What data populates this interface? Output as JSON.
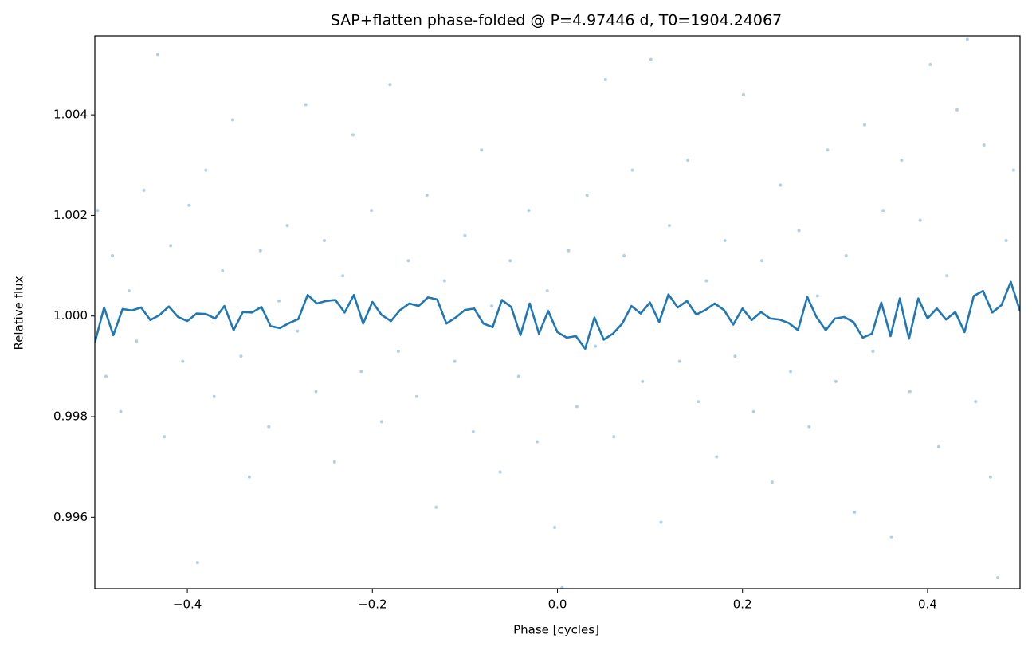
{
  "chart_data": {
    "type": "scatter",
    "title": "SAP+flatten phase-folded @ P=4.97446 d, T0=1904.24067",
    "x_label": "Phase [cycles]",
    "y_label": "Relative flux",
    "xlim": [
      -0.5,
      0.5
    ],
    "ylim": [
      0.99458,
      1.00557
    ],
    "xticks": [
      {
        "value": -0.4,
        "label": "−0.4"
      },
      {
        "value": -0.2,
        "label": "−0.2"
      },
      {
        "value": 0,
        "label": "0.0"
      },
      0.2,
      0.4
    ],
    "yticks": [
      0.996,
      0.998,
      {
        "value": 1,
        "label": "1.000"
      },
      1.002,
      1.004
    ],
    "series": [
      {
        "type": "scatter",
        "color": "#1f77b4",
        "x": [
          -0.497,
          -0.488,
          -0.481,
          -0.472,
          -0.463,
          -0.455,
          -0.447,
          -0.432,
          -0.425,
          -0.418,
          -0.405,
          -0.398,
          -0.389,
          -0.38,
          -0.371,
          -0.362,
          -0.351,
          -0.342,
          -0.333,
          -0.321,
          -0.312,
          -0.301,
          -0.292,
          -0.281,
          -0.272,
          -0.261,
          -0.252,
          -0.241,
          -0.232,
          -0.221,
          -0.212,
          -0.201,
          -0.19,
          -0.181,
          -0.172,
          -0.161,
          -0.152,
          -0.141,
          -0.131,
          -0.122,
          -0.111,
          -0.1,
          -0.091,
          -0.082,
          -0.071,
          -0.062,
          -0.051,
          -0.042,
          -0.031,
          -0.022,
          -0.011,
          -0.003,
          0.005,
          0.012,
          0.021,
          0.032,
          0.041,
          0.052,
          0.061,
          0.072,
          0.081,
          0.092,
          0.101,
          0.112,
          0.121,
          0.132,
          0.141,
          0.152,
          0.161,
          0.172,
          0.181,
          0.192,
          0.201,
          0.212,
          0.221,
          0.232,
          0.241,
          0.252,
          0.261,
          0.272,
          0.281,
          0.292,
          0.301,
          0.312,
          0.321,
          0.332,
          0.341,
          0.352,
          0.361,
          0.372,
          0.381,
          0.392,
          0.403,
          0.412,
          0.421,
          0.432,
          0.443,
          0.452,
          0.461,
          0.468,
          0.476,
          0.485,
          0.493
        ],
        "values": [
          1.0021,
          0.9988,
          1.0012,
          0.9981,
          1.0005,
          0.9995,
          1.0025,
          1.0052,
          0.9976,
          1.0014,
          0.9991,
          1.0022,
          0.9951,
          1.0029,
          0.9984,
          1.0009,
          1.0039,
          0.9992,
          0.9968,
          1.0013,
          0.9978,
          1.0003,
          1.0018,
          0.9997,
          1.0042,
          0.9985,
          1.0015,
          0.9971,
          1.0008,
          1.0036,
          0.9989,
          1.0021,
          0.9979,
          1.0046,
          0.9993,
          1.0011,
          0.9984,
          1.0024,
          0.9962,
          1.0007,
          0.9991,
          1.0016,
          0.9977,
          1.0033,
          1.0002,
          0.9969,
          1.0011,
          0.9988,
          1.0021,
          0.9975,
          1.0005,
          0.9958,
          0.9946,
          1.0013,
          0.9982,
          1.0024,
          0.9994,
          1.0047,
          0.9976,
          1.0012,
          1.0029,
          0.9987,
          1.0051,
          0.9959,
          1.0018,
          0.9991,
          1.0031,
          0.9983,
          1.0007,
          0.9972,
          1.0015,
          0.9992,
          1.0044,
          0.9981,
          1.0011,
          0.9967,
          1.0026,
          0.9989,
          1.0017,
          0.9978,
          1.0004,
          1.0033,
          0.9987,
          1.0012,
          0.9961,
          1.0038,
          0.9993,
          1.0021,
          0.9956,
          1.0031,
          0.9985,
          1.0019,
          1.005,
          0.9974,
          1.0008,
          1.0041,
          1.0055,
          0.9983,
          1.0034,
          0.9968,
          0.9948,
          1.0015,
          1.0029
        ]
      },
      {
        "type": "line",
        "color": "#1f77b4",
        "x": [
          -0.5,
          -0.49,
          -0.48,
          -0.47,
          -0.46,
          -0.45,
          -0.44,
          -0.43,
          -0.42,
          -0.41,
          -0.4,
          -0.39,
          -0.38,
          -0.37,
          -0.36,
          -0.35,
          -0.34,
          -0.33,
          -0.32,
          -0.31,
          -0.3,
          -0.29,
          -0.28,
          -0.27,
          -0.26,
          -0.25,
          -0.24,
          -0.23,
          -0.22,
          -0.21,
          -0.2,
          -0.19,
          -0.18,
          -0.17,
          -0.16,
          -0.15,
          -0.14,
          -0.13,
          -0.12,
          -0.11,
          -0.1,
          -0.09,
          -0.08,
          -0.07,
          -0.06,
          -0.05,
          -0.04,
          -0.03,
          -0.02,
          -0.01,
          0,
          0.01,
          0.02,
          0.03,
          0.04,
          0.05,
          0.06,
          0.07,
          0.08,
          0.09,
          0.1,
          0.11,
          0.12,
          0.13,
          0.14,
          0.15,
          0.16,
          0.17,
          0.18,
          0.19,
          0.2,
          0.21,
          0.22,
          0.23,
          0.24,
          0.25,
          0.26,
          0.27,
          0.28,
          0.29,
          0.3,
          0.31,
          0.32,
          0.33,
          0.34,
          0.35,
          0.36,
          0.37,
          0.38,
          0.39,
          0.4,
          0.41,
          0.42,
          0.43,
          0.44,
          0.45,
          0.46,
          0.47,
          0.48,
          0.49,
          0.5
        ],
        "values": [
          0.99947,
          1.00017,
          0.99962,
          1.00014,
          1.00011,
          1.00017,
          0.99992,
          1.00002,
          1.00019,
          0.99998,
          0.9999,
          1.00005,
          1.00004,
          0.99995,
          1.0002,
          0.99972,
          1.00008,
          1.00007,
          1.00018,
          0.9998,
          0.99976,
          0.99986,
          0.99994,
          1.00042,
          1.00025,
          1.0003,
          1.00032,
          1.00007,
          1.00042,
          0.99985,
          1.00028,
          1.00002,
          0.9999,
          1.00012,
          1.00025,
          1.0002,
          1.00037,
          1.00033,
          0.99985,
          0.99997,
          1.00012,
          1.00015,
          0.99985,
          0.99978,
          1.00032,
          1.00018,
          0.99962,
          1.00025,
          0.99965,
          1.0001,
          0.99968,
          0.99957,
          0.9996,
          0.99935,
          0.99997,
          0.99953,
          0.99965,
          0.99985,
          1.0002,
          1.00005,
          1.00027,
          0.99988,
          1.00043,
          1.00017,
          1.0003,
          1.00003,
          1.00012,
          1.00025,
          1.00012,
          0.99983,
          1.00015,
          0.99992,
          1.00008,
          0.99995,
          0.99993,
          0.99986,
          0.99972,
          1.00038,
          0.99998,
          0.99972,
          0.99995,
          0.99998,
          0.99988,
          0.99957,
          0.99965,
          1.00027,
          0.9996,
          1.00035,
          0.99955,
          1.00035,
          0.99995,
          1.00015,
          0.99993,
          1.00008,
          0.99968,
          1.0004,
          1.0005,
          1.00007,
          1.00022,
          1.00068,
          1.0001
        ]
      }
    ]
  }
}
